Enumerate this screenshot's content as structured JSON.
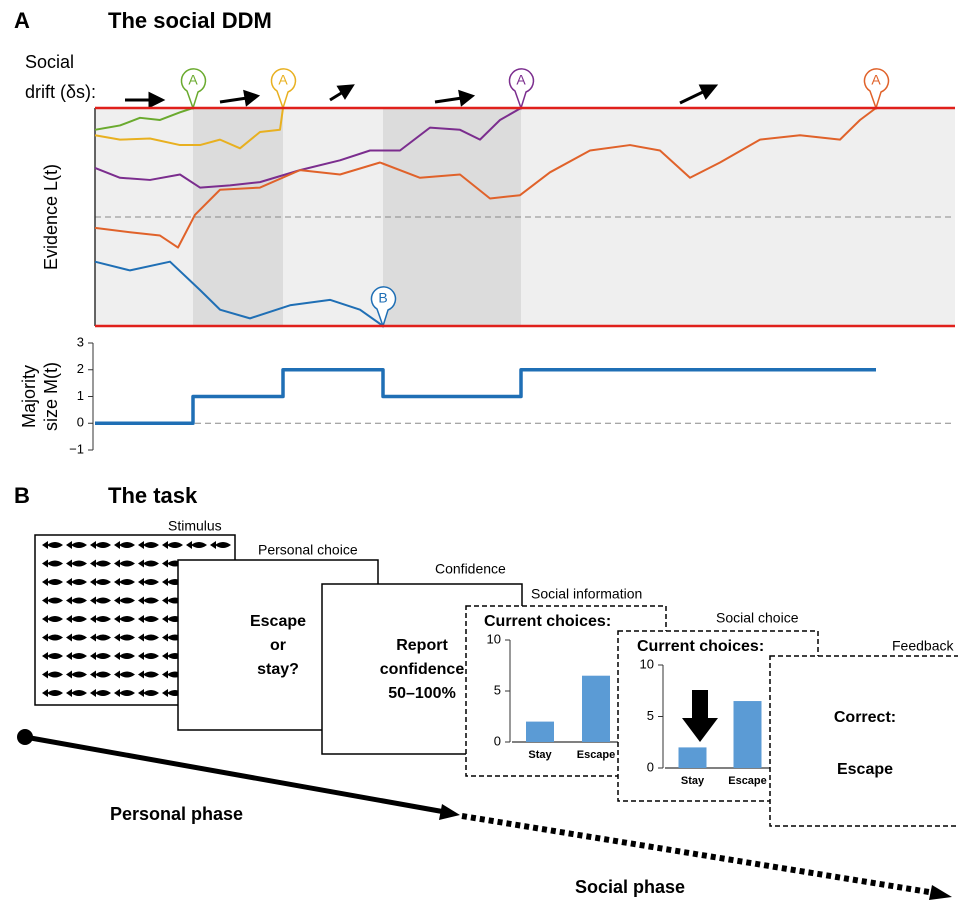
{
  "panel_a": {
    "label": "A",
    "title": "The social DDM",
    "drift_label": [
      "Social",
      "drift (δs):"
    ]
  },
  "chart_data": [
    {
      "type": "line",
      "y_label": "Evidence L(t)",
      "xlim": [
        0,
        860
      ],
      "ylim": [
        -1,
        1
      ],
      "bounds": [
        -1,
        1
      ],
      "bounds_color": "#e0201b",
      "reference_line": 0,
      "background": "#efefef",
      "shade_color": "#dcdcdc",
      "shaded_regions": [
        [
          98,
          188
        ],
        [
          288,
          426
        ]
      ],
      "series": [
        {
          "color": "#6aaa2e",
          "end_label": "A",
          "x": [
            0,
            25,
            45,
            65,
            85,
            98
          ],
          "values": [
            0.8,
            0.84,
            0.91,
            0.89,
            0.96,
            1
          ]
        },
        {
          "color": "#e8b020",
          "end_label": "A",
          "x": [
            0,
            25,
            55,
            85,
            105,
            125,
            145,
            165,
            185,
            188
          ],
          "values": [
            0.75,
            0.71,
            0.72,
            0.66,
            0.66,
            0.71,
            0.63,
            0.78,
            0.8,
            1
          ]
        },
        {
          "color": "#7b2d8e",
          "end_label": "A",
          "x": [
            0,
            25,
            55,
            85,
            105,
            135,
            165,
            205,
            245,
            275,
            305,
            335,
            365,
            385,
            405,
            426
          ],
          "values": [
            0.45,
            0.36,
            0.34,
            0.39,
            0.27,
            0.29,
            0.32,
            0.43,
            0.52,
            0.61,
            0.61,
            0.82,
            0.8,
            0.71,
            0.89,
            1
          ]
        },
        {
          "color": "#e0622a",
          "end_label": "A",
          "x": [
            0,
            35,
            65,
            83,
            100,
            125,
            165,
            205,
            245,
            285,
            325,
            365,
            395,
            425,
            455,
            495,
            535,
            565,
            595,
            625,
            665,
            705,
            745,
            765,
            781
          ],
          "values": [
            -0.1,
            -0.14,
            -0.17,
            -0.28,
            0.02,
            0.25,
            0.27,
            0.43,
            0.39,
            0.5,
            0.36,
            0.39,
            0.17,
            0.2,
            0.41,
            0.61,
            0.66,
            0.61,
            0.36,
            0.5,
            0.71,
            0.75,
            0.71,
            0.89,
            1
          ]
        },
        {
          "color": "#1f6fb5",
          "end_label": "B",
          "x": [
            0,
            35,
            75,
            105,
            125,
            155,
            195,
            235,
            265,
            288
          ],
          "values": [
            -0.41,
            -0.49,
            -0.41,
            -0.67,
            -0.85,
            -0.93,
            -0.81,
            -0.76,
            -0.85,
            -1
          ]
        }
      ]
    },
    {
      "type": "line",
      "y_label": [
        "Majority",
        "size M(t)"
      ],
      "xlim": [
        0,
        860
      ],
      "ylim": [
        -1,
        3
      ],
      "reference_line": 0,
      "yticks": [
        {
          "value": -1,
          "label": "−1"
        },
        0,
        1,
        2,
        3
      ],
      "series": [
        {
          "color": "#1f6fb5",
          "x": [
            0,
            98,
            98,
            188,
            188,
            288,
            288,
            426,
            426,
            781
          ],
          "values": [
            0,
            0,
            1,
            1,
            2,
            2,
            1,
            1,
            2,
            2
          ]
        }
      ]
    },
    {
      "type": "bar",
      "title": "Current choices:",
      "categories": [
        "Stay",
        "Escape"
      ],
      "values": [
        2,
        6.5
      ],
      "color": "#5b9bd5",
      "ylim": [
        0,
        10
      ],
      "yticks": [
        0,
        5,
        10
      ]
    },
    {
      "type": "bar",
      "title": "Current choices:",
      "categories": [
        "Stay",
        "Escape"
      ],
      "values": [
        2,
        6.5
      ],
      "color": "#5b9bd5",
      "ylim": [
        0,
        10
      ],
      "yticks": [
        0,
        5,
        10
      ]
    }
  ],
  "panel_b": {
    "label": "B",
    "title": "The task",
    "screens": [
      {
        "label": "Stimulus"
      },
      {
        "label": "Personal choice",
        "text": [
          "Escape",
          "or",
          "stay?"
        ]
      },
      {
        "label": "Confidence",
        "text": [
          "Report",
          "confidence",
          "50–100%"
        ]
      },
      {
        "label": "Social information"
      },
      {
        "label": "Social choice"
      },
      {
        "label": "Feedback",
        "text": [
          "Correct:",
          "Escape"
        ]
      }
    ],
    "phases": [
      "Personal phase",
      "Social phase"
    ]
  }
}
